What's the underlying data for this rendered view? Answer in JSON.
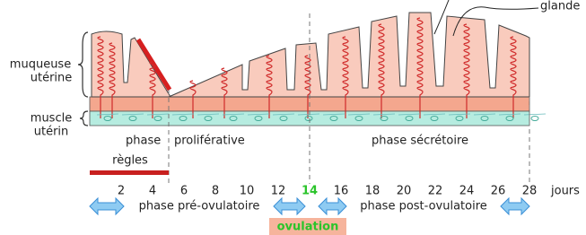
{
  "labels": {
    "glande": "glande",
    "mucosa_1": "muqueuse",
    "mucosa_2": "utérine",
    "muscle_1": "muscle",
    "muscle_2": "utérin"
  },
  "phases": {
    "first": "phase",
    "proliferative": "proliférative",
    "secretory": "phase sécrétoire"
  },
  "menses": "règles",
  "days": {
    "ticks": [
      2,
      4,
      6,
      8,
      10,
      12,
      14,
      16,
      18,
      20,
      22,
      24,
      26,
      28
    ],
    "highlight": 14,
    "unit": "jours"
  },
  "periods": {
    "pre": "phase pré-ovulatoire",
    "post": "phase post-ovulatoire",
    "ovulation": "ovulation"
  }
}
